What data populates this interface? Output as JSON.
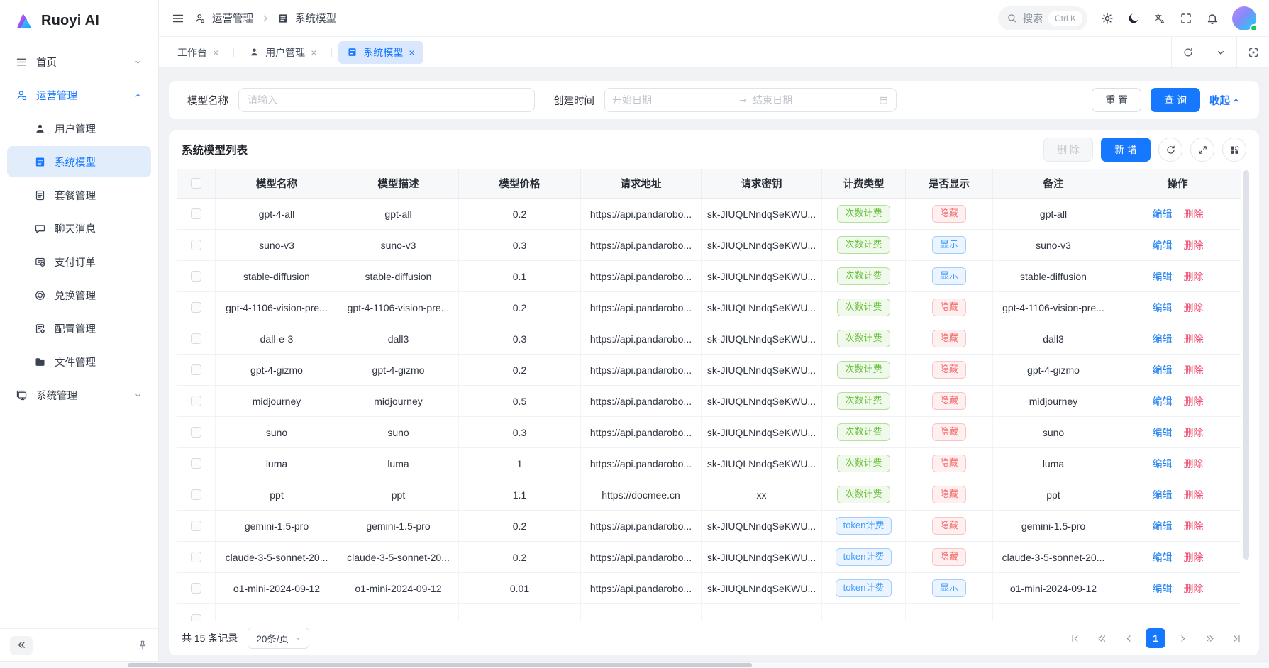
{
  "colors": {
    "primary": "#1677ff",
    "sidebar-active-bg": "#e1edfb",
    "tab-active-bg": "#d9e8ff",
    "badge-green-text": "#67c23a",
    "badge-green-bg": "#f0f9eb",
    "badge-green-border": "#b3e19d",
    "badge-red-text": "#f56c6c",
    "badge-red-bg": "#fef0f0",
    "badge-red-border": "#fbc4c4",
    "badge-blue-text": "#409eff",
    "badge-blue-bg": "#ecf5ff",
    "badge-blue-border": "#a0cfff",
    "link-edit": "#2080f0",
    "link-delete": "#f5476c"
  },
  "app": {
    "title": "Ruoyi AI"
  },
  "sidebar": {
    "items": [
      {
        "label": "首页",
        "icon": "menu",
        "level": 1,
        "chevron": "down"
      },
      {
        "label": "运营管理",
        "icon": "operation",
        "level": 1,
        "chevron": "up",
        "active": true
      },
      {
        "label": "用户管理",
        "icon": "user",
        "level": 2
      },
      {
        "label": "系统模型",
        "icon": "model",
        "level": 2,
        "selected": true
      },
      {
        "label": "套餐管理",
        "icon": "package",
        "level": 2
      },
      {
        "label": "聊天消息",
        "icon": "chat",
        "level": 2
      },
      {
        "label": "支付订单",
        "icon": "payment",
        "level": 2
      },
      {
        "label": "兑换管理",
        "icon": "redeem",
        "level": 2
      },
      {
        "label": "配置管理",
        "icon": "config",
        "level": 2
      },
      {
        "label": "文件管理",
        "icon": "folder",
        "level": 2
      },
      {
        "label": "系统管理",
        "icon": "system",
        "level": 1,
        "chevron": "down"
      }
    ]
  },
  "header": {
    "breadcrumb": [
      {
        "label": "运营管理",
        "icon": "operation"
      },
      {
        "label": "系统模型",
        "icon": "model"
      }
    ],
    "search": {
      "placeholder": "搜索",
      "shortcut": "Ctrl K"
    },
    "translate_glyph": "文A"
  },
  "tabs": [
    {
      "label": "工作台"
    },
    {
      "label": "用户管理",
      "icon": "user"
    },
    {
      "label": "系统模型",
      "icon": "model",
      "active": true
    }
  ],
  "filter": {
    "name_label": "模型名称",
    "name_placeholder": "请输入",
    "date_label": "创建时间",
    "date_start_placeholder": "开始日期",
    "date_end_placeholder": "结束日期",
    "reset_label": "重 置",
    "search_label": "查 询",
    "collapse_label": "收起"
  },
  "list": {
    "title": "系统模型列表",
    "delete_label": "删 除",
    "add_label": "新 增"
  },
  "table": {
    "columns": [
      "模型名称",
      "模型描述",
      "模型价格",
      "请求地址",
      "请求密钥",
      "计费类型",
      "是否显示",
      "备注",
      "操作"
    ],
    "actions": {
      "edit": "编辑",
      "delete": "删除"
    },
    "rows": [
      {
        "name": "gpt-4-all",
        "desc": "gpt-all",
        "price": "0.2",
        "url": "https://api.pandarobo...",
        "key": "sk-JIUQLNndqSeKWU...",
        "billing": "次数计费",
        "billing_style": "green",
        "visible": "隐藏",
        "visible_style": "red",
        "remark": "gpt-all"
      },
      {
        "name": "suno-v3",
        "desc": "suno-v3",
        "price": "0.3",
        "url": "https://api.pandarobo...",
        "key": "sk-JIUQLNndqSeKWU...",
        "billing": "次数计费",
        "billing_style": "green",
        "visible": "显示",
        "visible_style": "blue",
        "remark": "suno-v3"
      },
      {
        "name": "stable-diffusion",
        "desc": "stable-diffusion",
        "price": "0.1",
        "url": "https://api.pandarobo...",
        "key": "sk-JIUQLNndqSeKWU...",
        "billing": "次数计费",
        "billing_style": "green",
        "visible": "显示",
        "visible_style": "blue",
        "remark": "stable-diffusion"
      },
      {
        "name": "gpt-4-1106-vision-pre...",
        "desc": "gpt-4-1106-vision-pre...",
        "price": "0.2",
        "url": "https://api.pandarobo...",
        "key": "sk-JIUQLNndqSeKWU...",
        "billing": "次数计费",
        "billing_style": "green",
        "visible": "隐藏",
        "visible_style": "red",
        "remark": "gpt-4-1106-vision-pre..."
      },
      {
        "name": "dall-e-3",
        "desc": "dall3",
        "price": "0.3",
        "url": "https://api.pandarobo...",
        "key": "sk-JIUQLNndqSeKWU...",
        "billing": "次数计费",
        "billing_style": "green",
        "visible": "隐藏",
        "visible_style": "red",
        "remark": "dall3"
      },
      {
        "name": "gpt-4-gizmo",
        "desc": "gpt-4-gizmo",
        "price": "0.2",
        "url": "https://api.pandarobo...",
        "key": "sk-JIUQLNndqSeKWU...",
        "billing": "次数计费",
        "billing_style": "green",
        "visible": "隐藏",
        "visible_style": "red",
        "remark": "gpt-4-gizmo"
      },
      {
        "name": "midjourney",
        "desc": "midjourney",
        "price": "0.5",
        "url": "https://api.pandarobo...",
        "key": "sk-JIUQLNndqSeKWU...",
        "billing": "次数计费",
        "billing_style": "green",
        "visible": "隐藏",
        "visible_style": "red",
        "remark": "midjourney"
      },
      {
        "name": "suno",
        "desc": "suno",
        "price": "0.3",
        "url": "https://api.pandarobo...",
        "key": "sk-JIUQLNndqSeKWU...",
        "billing": "次数计费",
        "billing_style": "green",
        "visible": "隐藏",
        "visible_style": "red",
        "remark": "suno"
      },
      {
        "name": "luma",
        "desc": "luma",
        "price": "1",
        "url": "https://api.pandarobo...",
        "key": "sk-JIUQLNndqSeKWU...",
        "billing": "次数计费",
        "billing_style": "green",
        "visible": "隐藏",
        "visible_style": "red",
        "remark": "luma"
      },
      {
        "name": "ppt",
        "desc": "ppt",
        "price": "1.1",
        "url": "https://docmee.cn",
        "key": "xx",
        "billing": "次数计费",
        "billing_style": "green",
        "visible": "隐藏",
        "visible_style": "red",
        "remark": "ppt"
      },
      {
        "name": "gemini-1.5-pro",
        "desc": "gemini-1.5-pro",
        "price": "0.2",
        "url": "https://api.pandarobo...",
        "key": "sk-JIUQLNndqSeKWU...",
        "billing": "token计费",
        "billing_style": "blue",
        "visible": "隐藏",
        "visible_style": "red",
        "remark": "gemini-1.5-pro"
      },
      {
        "name": "claude-3-5-sonnet-20...",
        "desc": "claude-3-5-sonnet-20...",
        "price": "0.2",
        "url": "https://api.pandarobo...",
        "key": "sk-JIUQLNndqSeKWU...",
        "billing": "token计费",
        "billing_style": "blue",
        "visible": "隐藏",
        "visible_style": "red",
        "remark": "claude-3-5-sonnet-20..."
      },
      {
        "name": "o1-mini-2024-09-12",
        "desc": "o1-mini-2024-09-12",
        "price": "0.01",
        "url": "https://api.pandarobo...",
        "key": "sk-JIUQLNndqSeKWU...",
        "billing": "token计费",
        "billing_style": "blue",
        "visible": "显示",
        "visible_style": "blue",
        "remark": "o1-mini-2024-09-12"
      }
    ],
    "has_partial_row": true
  },
  "footer": {
    "total": "共 15 条记录",
    "page_size": "20条/页",
    "current_page": "1"
  }
}
